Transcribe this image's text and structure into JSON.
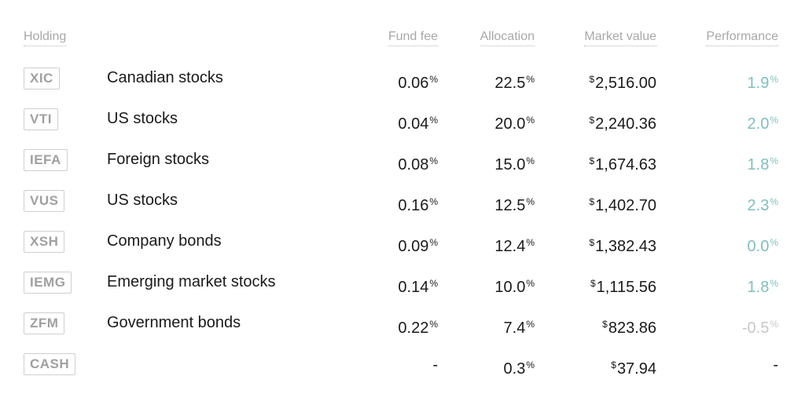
{
  "headers": {
    "holding": "Holding",
    "fee": "Fund fee",
    "allocation": "Allocation",
    "market_value": "Market value",
    "performance": "Performance"
  },
  "units": {
    "percent": "%",
    "currency": "$"
  },
  "rows": [
    {
      "ticker": "XIC",
      "name": "Canadian stocks",
      "fee": "0.06",
      "allocation": "22.5",
      "market_value": "2,516.00",
      "performance": "1.9",
      "perf_status": "pos"
    },
    {
      "ticker": "VTI",
      "name": "US stocks",
      "fee": "0.04",
      "allocation": "20.0",
      "market_value": "2,240.36",
      "performance": "2.0",
      "perf_status": "pos"
    },
    {
      "ticker": "IEFA",
      "name": "Foreign stocks",
      "fee": "0.08",
      "allocation": "15.0",
      "market_value": "1,674.63",
      "performance": "1.8",
      "perf_status": "pos"
    },
    {
      "ticker": "VUS",
      "name": "US stocks",
      "fee": "0.16",
      "allocation": "12.5",
      "market_value": "1,402.70",
      "performance": "2.3",
      "perf_status": "pos"
    },
    {
      "ticker": "XSH",
      "name": "Company bonds",
      "fee": "0.09",
      "allocation": "12.4",
      "market_value": "1,382.43",
      "performance": "0.0",
      "perf_status": "zero"
    },
    {
      "ticker": "IEMG",
      "name": "Emerging market stocks",
      "fee": "0.14",
      "allocation": "10.0",
      "market_value": "1,115.56",
      "performance": "1.8",
      "perf_status": "pos"
    },
    {
      "ticker": "ZFM",
      "name": "Government bonds",
      "fee": "0.22",
      "allocation": "7.4",
      "market_value": "823.86",
      "performance": "-0.5",
      "perf_status": "neg"
    },
    {
      "ticker": "CASH",
      "name": "",
      "fee": "-",
      "allocation": "0.3",
      "market_value": "37.94",
      "performance": "-",
      "perf_status": "none"
    }
  ],
  "colors": {
    "positive": "#7fbfbf",
    "negative": "#c8c8c8",
    "ticker_text": "#a0a0a0",
    "header_text": "#a8a8a8"
  }
}
